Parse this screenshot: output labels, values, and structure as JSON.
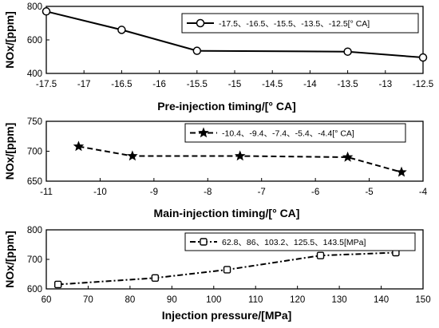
{
  "chart_data": [
    {
      "type": "line",
      "xlabel": "Pre-injection timing/[° CA]",
      "ylabel": "NOx/[ppm]",
      "xlim": [
        -17.5,
        -12.5
      ],
      "ylim": [
        400,
        800
      ],
      "xticks": [
        "-17.5",
        "-17",
        "-16.5",
        "-16",
        "-15.5",
        "-15",
        "-14.5",
        "-14",
        "-13.5",
        "-13",
        "-12.5"
      ],
      "yticks": [
        "400",
        "600",
        "800"
      ],
      "grid": false,
      "legend_position": "top-right",
      "series": [
        {
          "name": "-17.5、-16.5、-15.5、-13.5、-12.5[° CA]",
          "style": "solid",
          "marker": "circle",
          "x": [
            -17.5,
            -16.5,
            -15.5,
            -13.5,
            -12.5
          ],
          "y": [
            770,
            660,
            535,
            530,
            495
          ]
        }
      ]
    },
    {
      "type": "line",
      "xlabel": "Main-injection timing/[° CA]",
      "ylabel": "NOx/[ppm]",
      "xlim": [
        -11,
        -4
      ],
      "ylim": [
        650,
        750
      ],
      "xticks": [
        "-11",
        "-10",
        "-9",
        "-8",
        "-7",
        "-6",
        "-5",
        "-4"
      ],
      "yticks": [
        "650",
        "700",
        "750"
      ],
      "grid": false,
      "legend_position": "top-right",
      "series": [
        {
          "name": "-10.4、-9.4、-7.4、-5.4、-4.4[° CA]",
          "style": "dashed",
          "marker": "star",
          "x": [
            -10.4,
            -9.4,
            -7.4,
            -5.4,
            -4.4
          ],
          "y": [
            708,
            692,
            692,
            690,
            665
          ]
        }
      ]
    },
    {
      "type": "line",
      "xlabel": "Injection pressure/[MPa]",
      "ylabel": "NOx/[ppm]",
      "xlim": [
        60,
        150
      ],
      "ylim": [
        600,
        800
      ],
      "xticks": [
        "60",
        "70",
        "80",
        "90",
        "100",
        "110",
        "120",
        "130",
        "140",
        "150"
      ],
      "yticks": [
        "600",
        "700",
        "800"
      ],
      "grid": false,
      "legend_position": "top-right",
      "series": [
        {
          "name": "62.8、86、103.2、125.5、143.5[MPa]",
          "style": "dashdot",
          "marker": "square",
          "x": [
            62.8,
            86,
            103.2,
            125.5,
            143.5
          ],
          "y": [
            615,
            637,
            665,
            713,
            723
          ]
        }
      ]
    }
  ]
}
